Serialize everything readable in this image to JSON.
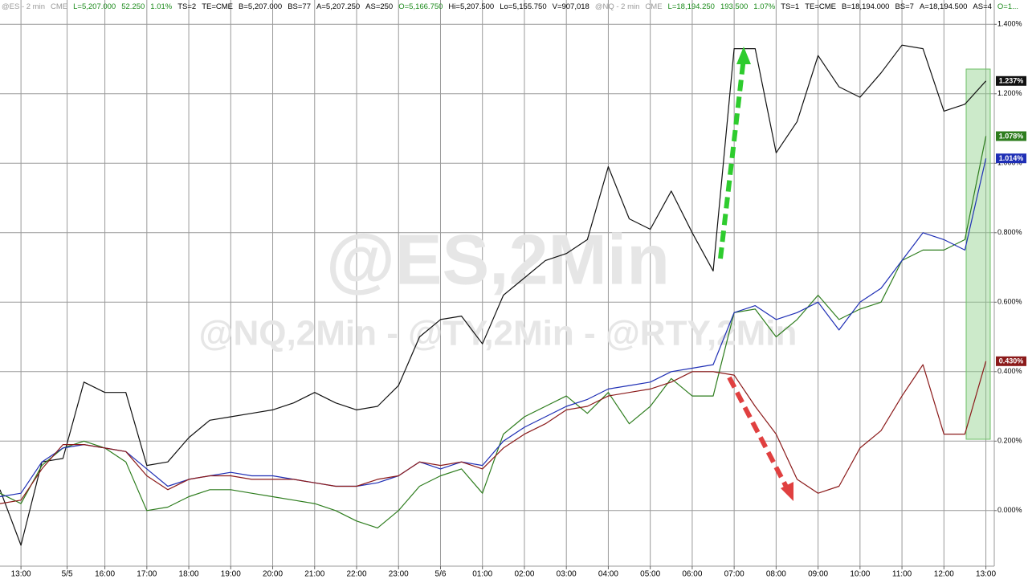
{
  "chart_data": {
    "type": "line",
    "header": [
      {
        "text": "@ES - 2 min",
        "color": "#9a9a9a"
      },
      {
        "text": "CME",
        "color": "#9a9a9a"
      },
      {
        "text": "L=5,207.000",
        "color": "#1a8a1a"
      },
      {
        "text": "52.250",
        "color": "#1a8a1a"
      },
      {
        "text": "1.01%",
        "color": "#1a8a1a"
      },
      {
        "text": "TS=2",
        "color": "#000000"
      },
      {
        "text": "TE=CME",
        "color": "#000000"
      },
      {
        "text": "B=5,207.000",
        "color": "#000000"
      },
      {
        "text": "BS=77",
        "color": "#000000"
      },
      {
        "text": "A=5,207.250",
        "color": "#000000"
      },
      {
        "text": "AS=250",
        "color": "#000000"
      },
      {
        "text": "O=5,166.750",
        "color": "#1a8a1a"
      },
      {
        "text": "Hi=5,207.500",
        "color": "#000000"
      },
      {
        "text": "Lo=5,155.750",
        "color": "#000000"
      },
      {
        "text": "V=907,018",
        "color": "#000000"
      },
      {
        "text": "@NQ - 2 min",
        "color": "#9a9a9a"
      },
      {
        "text": "CME",
        "color": "#9a9a9a"
      },
      {
        "text": "L=18,194.250",
        "color": "#1a8a1a"
      },
      {
        "text": "193.500",
        "color": "#1a8a1a"
      },
      {
        "text": "1.07%",
        "color": "#1a8a1a"
      },
      {
        "text": "TS=1",
        "color": "#000000"
      },
      {
        "text": "TE=CME",
        "color": "#000000"
      },
      {
        "text": "B=18,194.000",
        "color": "#000000"
      },
      {
        "text": "BS=7",
        "color": "#000000"
      },
      {
        "text": "A=18,194.500",
        "color": "#000000"
      },
      {
        "text": "AS=4",
        "color": "#000000"
      },
      {
        "text": "O=1...",
        "color": "#1a8a1a"
      }
    ],
    "watermarks": [
      "@ES,2Min",
      "@NQ,2Min - @TY,2Min - @RTY,2Min"
    ],
    "x": [
      -0.5,
      0,
      0.5,
      1,
      1.5,
      2,
      2.5,
      3,
      3.5,
      4,
      4.5,
      5,
      5.5,
      6,
      6.5,
      7,
      7.5,
      8,
      8.5,
      9,
      9.5,
      10,
      10.5,
      11,
      11.5,
      12,
      12.5,
      13,
      13.5,
      14,
      14.5,
      15,
      15.5,
      16,
      16.5,
      17,
      17.5,
      18,
      18.5,
      19,
      19.5,
      20,
      20.5,
      21,
      21.5,
      22,
      22.5,
      23
    ],
    "series": [
      {
        "name": "@ES",
        "color": "#111111",
        "end_label": "1.237%",
        "values": [
          0.06,
          -0.1,
          0.14,
          0.15,
          0.37,
          0.34,
          0.34,
          0.13,
          0.14,
          0.21,
          0.26,
          0.27,
          0.28,
          0.29,
          0.31,
          0.34,
          0.31,
          0.29,
          0.3,
          0.36,
          0.5,
          0.55,
          0.56,
          0.48,
          0.62,
          0.67,
          0.72,
          0.74,
          0.78,
          0.99,
          0.84,
          0.81,
          0.92,
          0.8,
          0.69,
          1.33,
          1.33,
          1.03,
          1.12,
          1.31,
          1.22,
          1.19,
          1.26,
          1.34,
          1.33,
          1.15,
          1.17,
          1.237
        ]
      },
      {
        "name": "@NQ",
        "color": "#2e7d1e",
        "end_label": "1.078%",
        "values": [
          0.05,
          0.02,
          0.13,
          0.18,
          0.2,
          0.18,
          0.14,
          0.0,
          0.01,
          0.04,
          0.06,
          0.06,
          0.05,
          0.04,
          0.03,
          0.02,
          0.0,
          -0.03,
          -0.05,
          0.0,
          0.07,
          0.1,
          0.12,
          0.05,
          0.22,
          0.27,
          0.3,
          0.33,
          0.28,
          0.34,
          0.25,
          0.3,
          0.38,
          0.33,
          0.33,
          0.57,
          0.58,
          0.5,
          0.55,
          0.62,
          0.55,
          0.58,
          0.6,
          0.72,
          0.75,
          0.75,
          0.78,
          1.078
        ]
      },
      {
        "name": "@TY",
        "color": "#1f2fb5",
        "end_label": "1.014%",
        "values": [
          0.04,
          0.05,
          0.14,
          0.18,
          0.19,
          0.18,
          0.17,
          0.12,
          0.07,
          0.09,
          0.1,
          0.11,
          0.1,
          0.1,
          0.09,
          0.08,
          0.07,
          0.07,
          0.08,
          0.1,
          0.14,
          0.12,
          0.14,
          0.13,
          0.2,
          0.24,
          0.27,
          0.3,
          0.32,
          0.35,
          0.36,
          0.37,
          0.4,
          0.41,
          0.42,
          0.57,
          0.59,
          0.55,
          0.57,
          0.6,
          0.52,
          0.6,
          0.64,
          0.72,
          0.8,
          0.78,
          0.75,
          1.014
        ]
      },
      {
        "name": "@RTY",
        "color": "#8b1a1a",
        "end_label": "0.430%",
        "values": [
          0.02,
          0.03,
          0.12,
          0.19,
          0.19,
          0.18,
          0.17,
          0.1,
          0.06,
          0.09,
          0.1,
          0.1,
          0.09,
          0.09,
          0.09,
          0.08,
          0.07,
          0.07,
          0.09,
          0.1,
          0.14,
          0.13,
          0.14,
          0.12,
          0.18,
          0.22,
          0.25,
          0.29,
          0.3,
          0.33,
          0.34,
          0.35,
          0.37,
          0.4,
          0.4,
          0.39,
          0.3,
          0.22,
          0.09,
          0.05,
          0.07,
          0.18,
          0.23,
          0.33,
          0.42,
          0.22,
          0.22,
          0.43
        ]
      }
    ],
    "xlim": [
      -0.5,
      23.2
    ],
    "xticks": [
      {
        "value": 0,
        "label": "13:00"
      },
      {
        "value": 1.1,
        "label": "5/5"
      },
      {
        "value": 2,
        "label": "16:00"
      },
      {
        "value": 3,
        "label": "17:00"
      },
      {
        "value": 4,
        "label": "18:00"
      },
      {
        "value": 5,
        "label": "19:00"
      },
      {
        "value": 6,
        "label": "20:00"
      },
      {
        "value": 7,
        "label": "21:00"
      },
      {
        "value": 8,
        "label": "22:00"
      },
      {
        "value": 9,
        "label": "23:00"
      },
      {
        "value": 10,
        "label": "5/6"
      },
      {
        "value": 11,
        "label": "01:00"
      },
      {
        "value": 12,
        "label": "02:00"
      },
      {
        "value": 13,
        "label": "03:00"
      },
      {
        "value": 14,
        "label": "04:00"
      },
      {
        "value": 15,
        "label": "05:00"
      },
      {
        "value": 16,
        "label": "06:00"
      },
      {
        "value": 17,
        "label": "07:00"
      },
      {
        "value": 18,
        "label": "08:00"
      },
      {
        "value": 19,
        "label": "09:00"
      },
      {
        "value": 20,
        "label": "10:00"
      },
      {
        "value": 21,
        "label": "11:00"
      },
      {
        "value": 22,
        "label": "12:00"
      },
      {
        "value": 23,
        "label": "13:00"
      }
    ],
    "ylim": [
      -0.16,
      1.47
    ],
    "yticks": [
      {
        "value": 0,
        "label": "0.000%"
      },
      {
        "value": 0.2,
        "label": "0.200%"
      },
      {
        "value": 0.4,
        "label": "0.400%"
      },
      {
        "value": 0.6,
        "label": "0.600%"
      },
      {
        "value": 0.8,
        "label": "0.800%"
      },
      {
        "value": 1.0,
        "label": "1.000%"
      },
      {
        "value": 1.2,
        "label": "1.200%"
      },
      {
        "value": 1.4,
        "label": "1.400%"
      }
    ],
    "grid": true
  }
}
